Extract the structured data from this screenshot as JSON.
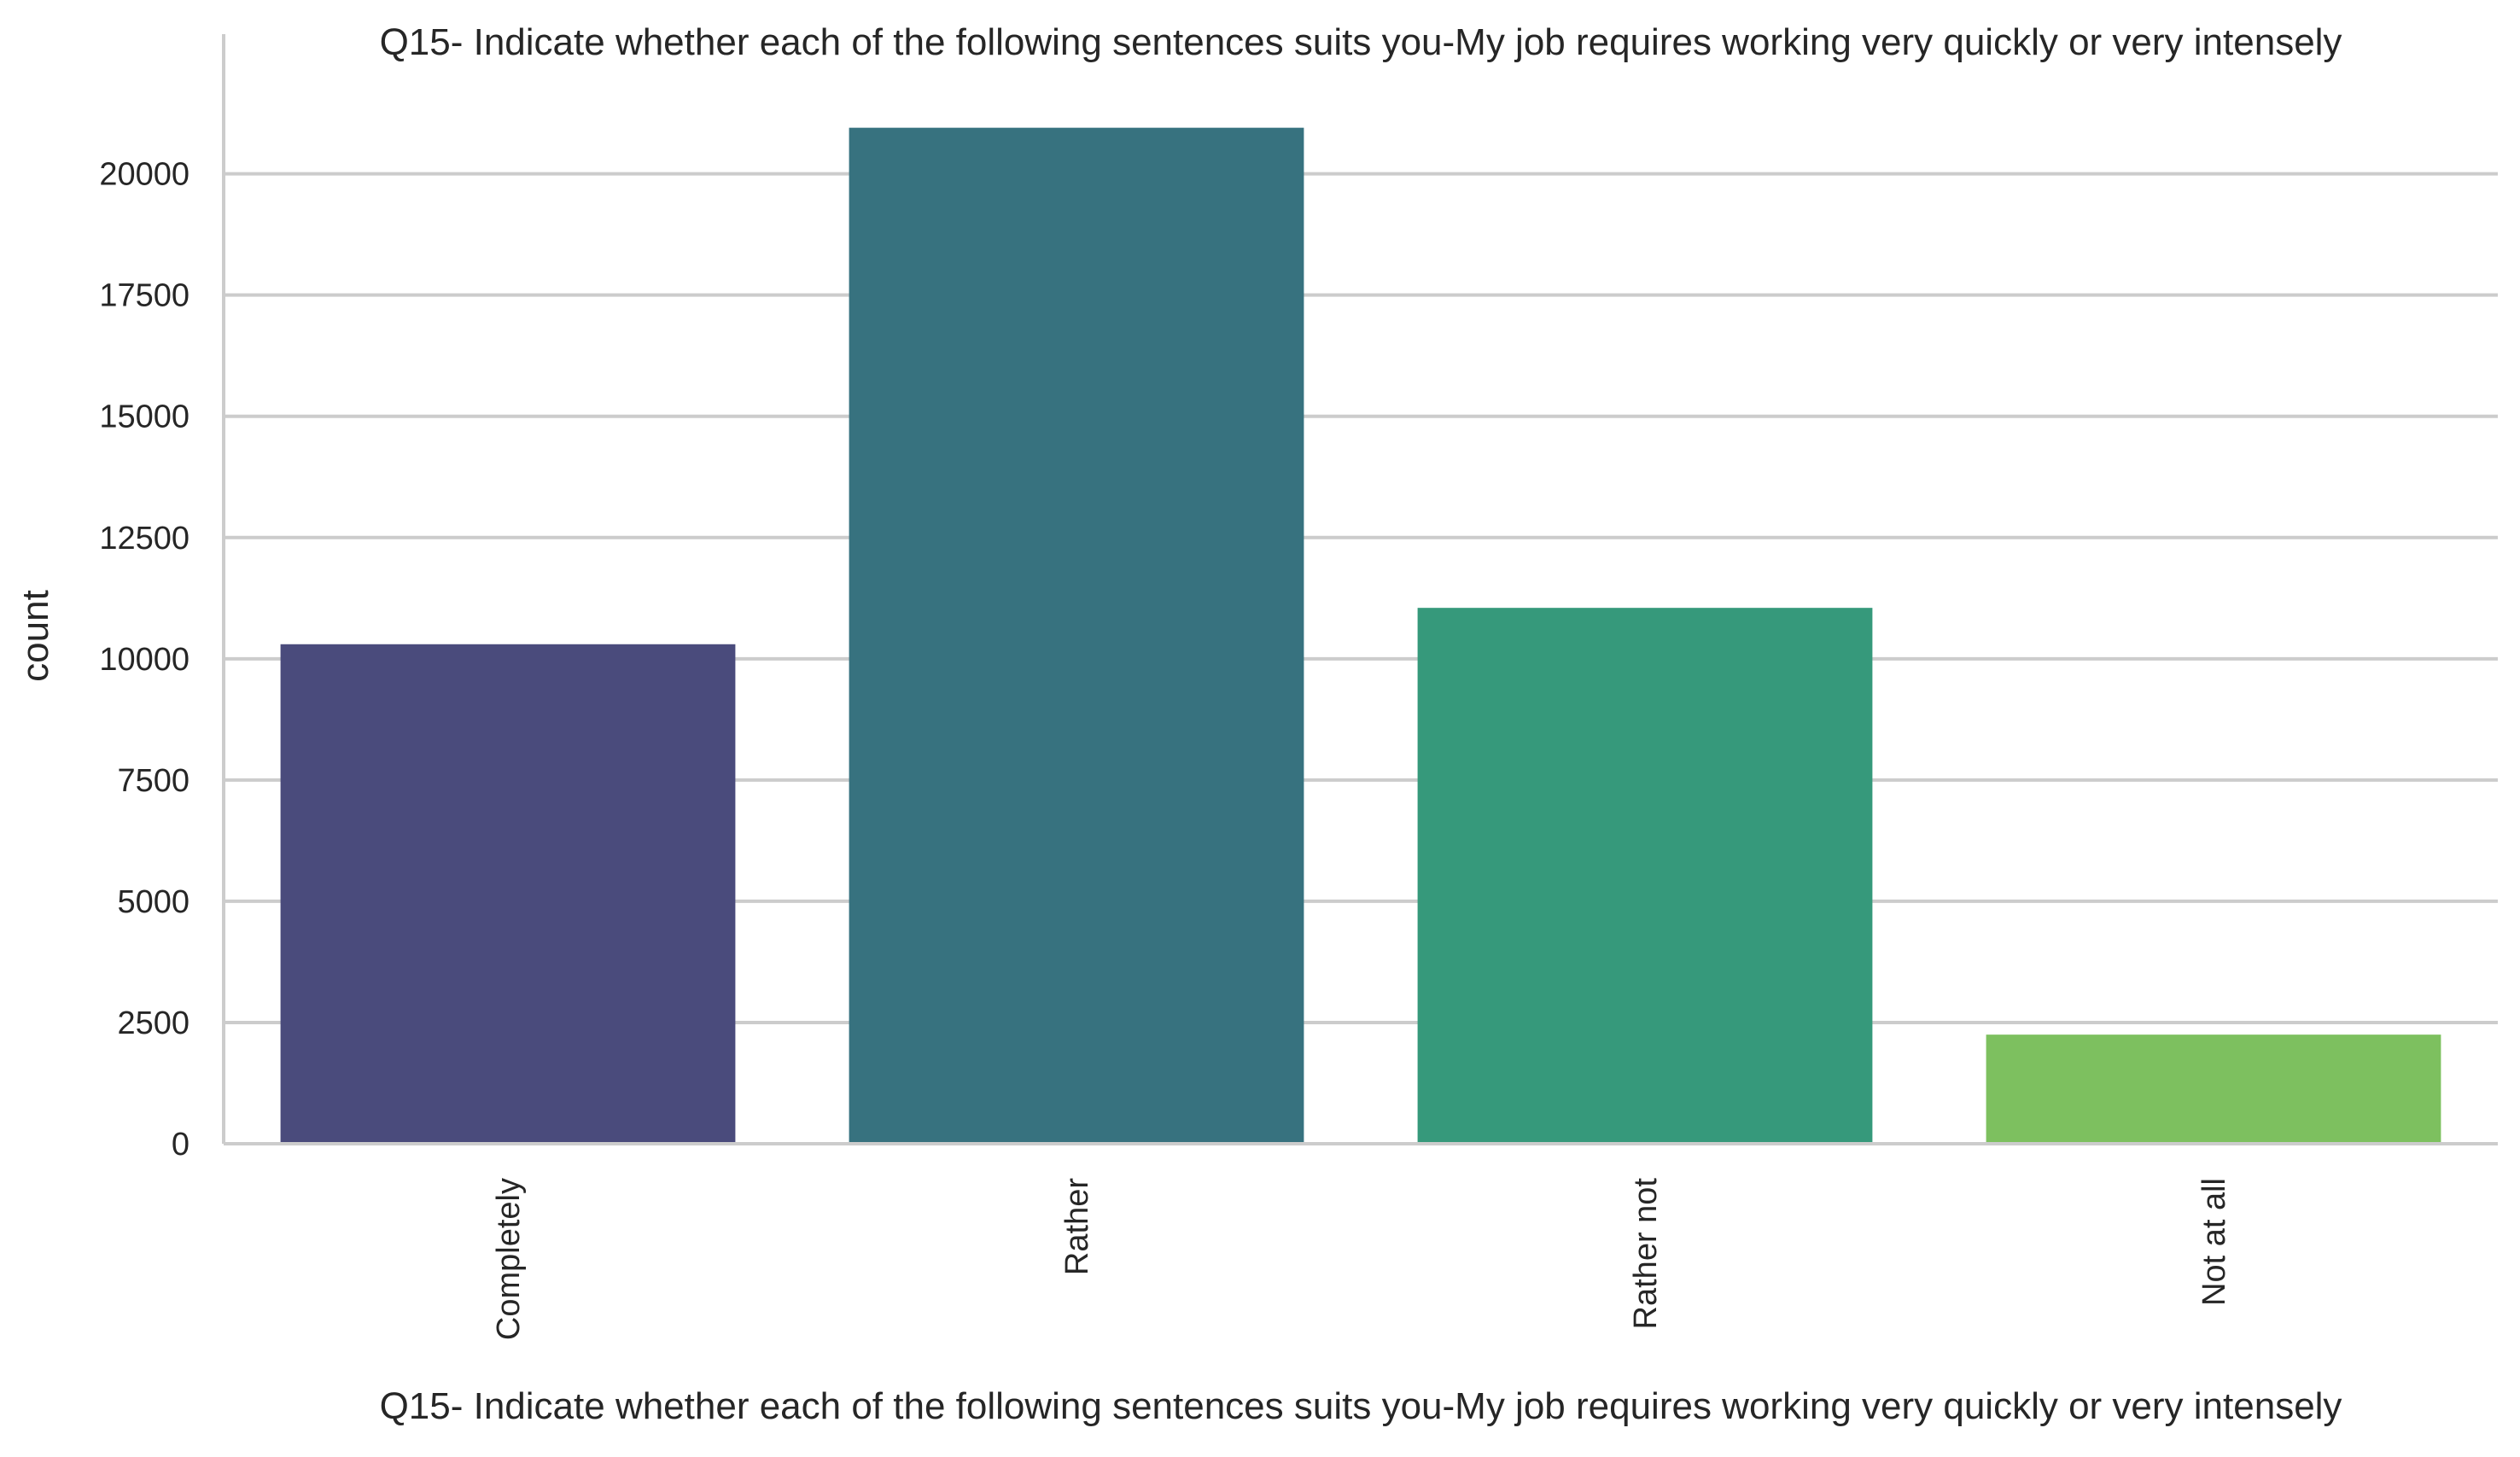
{
  "chart_data": {
    "type": "bar",
    "title": "Q15- Indicate whether each of the following sentences suits you-My job requires working very quickly or very intensely",
    "xlabel": "Q15- Indicate whether each of the following sentences suits you-My job requires working very quickly or very intensely",
    "ylabel": "count",
    "categories": [
      "Completely",
      "Rather",
      "Rather not",
      "Not at all"
    ],
    "values": [
      10300,
      20950,
      11050,
      2250
    ],
    "colors": [
      "#4a4b7c",
      "#37727f",
      "#36997b",
      "#7dc05f"
    ],
    "yticks": [
      0,
      2500,
      5000,
      7500,
      10000,
      12500,
      15000,
      17500,
      20000
    ],
    "ytick_labels": [
      "0",
      "2500",
      "5000",
      "7500",
      "10000",
      "12500",
      "15000",
      "17500",
      "20000"
    ],
    "ylim": [
      0,
      22000
    ],
    "grid": "horizontal",
    "x_tick_rotation": "vertical"
  }
}
